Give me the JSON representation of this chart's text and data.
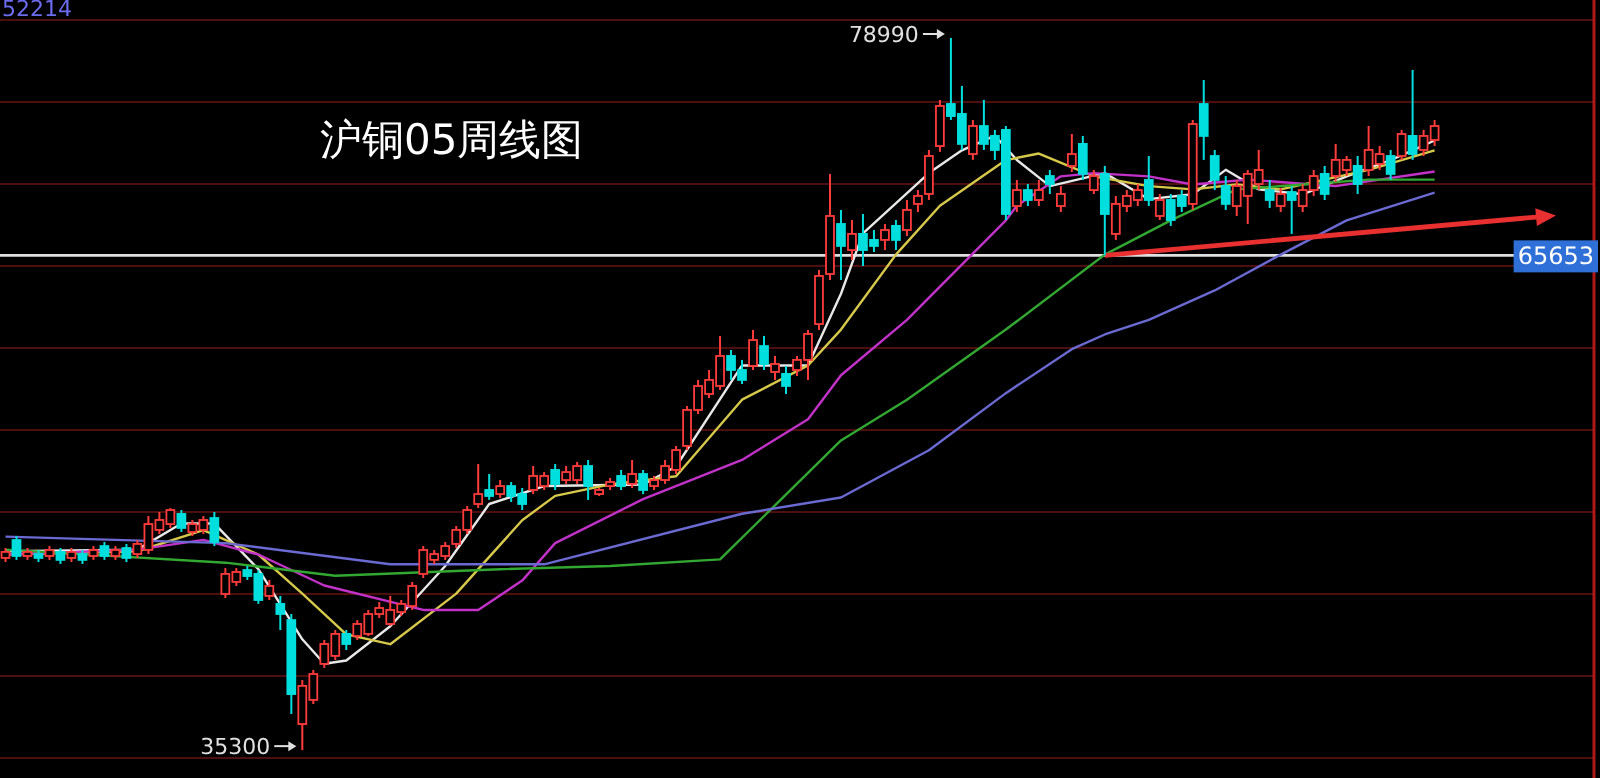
{
  "chart_data": {
    "type": "candlestick",
    "title": "沪铜05周线图",
    "annotations": [
      "52214",
      "78990",
      "35300"
    ],
    "categories": [
      null,
      null,
      null,
      null,
      null,
      null,
      null,
      null,
      null,
      null,
      null,
      null,
      null,
      null,
      null,
      null,
      null,
      null,
      null,
      null,
      null,
      null,
      null,
      null,
      null,
      null,
      null,
      null,
      null,
      null,
      null,
      null,
      null,
      null,
      null,
      null,
      null,
      null,
      null,
      null,
      null,
      null,
      null,
      null,
      null,
      null,
      null,
      null,
      null,
      null,
      null,
      null,
      null,
      null,
      null,
      null,
      null,
      null,
      null,
      null,
      null,
      null,
      null,
      null,
      null,
      null,
      null,
      null,
      null,
      null,
      null,
      null,
      null,
      null,
      null,
      null,
      null,
      null,
      null,
      null,
      null,
      null,
      null,
      null,
      null,
      null,
      null,
      null,
      null,
      null,
      null,
      null,
      null,
      null,
      null,
      null,
      null,
      null,
      null,
      null,
      null,
      null,
      null,
      null,
      null,
      null,
      null,
      null,
      null,
      null,
      null,
      null,
      null,
      null,
      null,
      null,
      null,
      null,
      null,
      null,
      null,
      null,
      null,
      null,
      null,
      null,
      null,
      null,
      null,
      null,
      null,
      null,
      null,
      null,
      null,
      null,
      null,
      null,
      null,
      null,
      null,
      null,
      null,
      null,
      null
    ],
    "ohlc": [
      [
        47090,
        47700,
        46840,
        47460
      ],
      [
        48190,
        48440,
        46970,
        47210
      ],
      [
        47210,
        47700,
        46970,
        47460
      ],
      [
        47330,
        47580,
        46840,
        47090
      ],
      [
        47210,
        47820,
        46970,
        47580
      ],
      [
        47460,
        47700,
        46720,
        46970
      ],
      [
        47090,
        47700,
        46840,
        47460
      ],
      [
        47330,
        47580,
        46720,
        46970
      ],
      [
        47210,
        47820,
        46970,
        47580
      ],
      [
        47820,
        48070,
        46970,
        47210
      ],
      [
        47210,
        47820,
        46970,
        47580
      ],
      [
        47700,
        47950,
        46840,
        47090
      ],
      [
        47330,
        48190,
        47090,
        47950
      ],
      [
        47580,
        49660,
        47330,
        49170
      ],
      [
        48810,
        49910,
        48560,
        49420
      ],
      [
        49170,
        50150,
        48930,
        50030
      ],
      [
        49790,
        50030,
        48680,
        48930
      ],
      [
        48680,
        49420,
        48440,
        49170
      ],
      [
        48810,
        49660,
        48560,
        49420
      ],
      [
        49540,
        49910,
        47820,
        48070
      ],
      [
        44880,
        46470,
        44630,
        46110
      ],
      [
        45620,
        46470,
        45370,
        46230
      ],
      [
        46350,
        46600,
        45740,
        45980
      ],
      [
        46110,
        46350,
        44270,
        44510
      ],
      [
        44760,
        45740,
        44510,
        45370
      ],
      [
        44270,
        44760,
        42670,
        43650
      ],
      [
        43280,
        43650,
        37520,
        38740
      ],
      [
        36900,
        39600,
        35300,
        39240
      ],
      [
        38380,
        40220,
        38130,
        39970
      ],
      [
        40590,
        42060,
        40340,
        41810
      ],
      [
        41080,
        42670,
        40830,
        42430
      ],
      [
        42430,
        42670,
        41440,
        41810
      ],
      [
        42300,
        43280,
        42060,
        43040
      ],
      [
        42430,
        43900,
        42300,
        43650
      ],
      [
        43650,
        44390,
        43410,
        44020
      ],
      [
        43040,
        44760,
        42920,
        43900
      ],
      [
        43770,
        44510,
        43530,
        44270
      ],
      [
        44140,
        45620,
        43900,
        45370
      ],
      [
        46110,
        47820,
        45860,
        47580
      ],
      [
        46970,
        47580,
        46720,
        47330
      ],
      [
        47210,
        48070,
        46970,
        47820
      ],
      [
        47950,
        49050,
        47700,
        48810
      ],
      [
        48810,
        50280,
        48560,
        50030
      ],
      [
        50400,
        52850,
        50150,
        51010
      ],
      [
        51260,
        52240,
        50650,
        50890
      ],
      [
        51010,
        51870,
        50770,
        51500
      ],
      [
        51500,
        51750,
        50520,
        50890
      ],
      [
        51010,
        51380,
        50030,
        50400
      ],
      [
        51260,
        52730,
        51010,
        52120
      ],
      [
        51500,
        52360,
        51260,
        52120
      ],
      [
        52490,
        52850,
        51260,
        51630
      ],
      [
        51870,
        52730,
        51630,
        52360
      ],
      [
        51870,
        52980,
        51630,
        52730
      ],
      [
        52730,
        53100,
        50650,
        51500
      ],
      [
        51010,
        51380,
        50890,
        51260
      ],
      [
        51500,
        52000,
        51260,
        51750
      ],
      [
        52120,
        52490,
        51260,
        51500
      ],
      [
        51630,
        53100,
        51380,
        52240
      ],
      [
        52240,
        52490,
        51010,
        51260
      ],
      [
        51500,
        52120,
        51260,
        51870
      ],
      [
        51870,
        53100,
        51630,
        52730
      ],
      [
        52490,
        53960,
        52240,
        53710
      ],
      [
        53960,
        56410,
        53710,
        56170
      ],
      [
        56170,
        58010,
        55920,
        57640
      ],
      [
        57150,
        58620,
        56900,
        58010
      ],
      [
        57640,
        60710,
        57400,
        59480
      ],
      [
        59480,
        59850,
        58010,
        58620
      ],
      [
        58620,
        59240,
        57760,
        58010
      ],
      [
        58870,
        61080,
        58620,
        60460
      ],
      [
        60090,
        60710,
        58620,
        58990
      ],
      [
        58500,
        59480,
        58010,
        58990
      ],
      [
        58380,
        58870,
        57150,
        57640
      ],
      [
        58620,
        59480,
        58250,
        59240
      ],
      [
        59240,
        61080,
        58010,
        60830
      ],
      [
        61440,
        64760,
        61080,
        64390
      ],
      [
        64510,
        70650,
        64140,
        68070
      ],
      [
        67580,
        68440,
        64140,
        66230
      ],
      [
        65980,
        67820,
        65370,
        66970
      ],
      [
        66970,
        68190,
        65000,
        65980
      ],
      [
        66600,
        67210,
        65860,
        66230
      ],
      [
        66600,
        67580,
        65980,
        67210
      ],
      [
        67460,
        67820,
        65980,
        66600
      ],
      [
        67210,
        69050,
        66840,
        68440
      ],
      [
        68810,
        69660,
        68310,
        69300
      ],
      [
        69420,
        72120,
        69050,
        71750
      ],
      [
        72360,
        75190,
        72000,
        74820
      ],
      [
        74940,
        78990,
        73960,
        74200
      ],
      [
        74330,
        76050,
        72120,
        72490
      ],
      [
        71870,
        73960,
        71510,
        73590
      ],
      [
        73590,
        75190,
        72120,
        72490
      ],
      [
        72980,
        73350,
        71510,
        72120
      ],
      [
        73350,
        73590,
        67820,
        68190
      ],
      [
        68680,
        70280,
        68310,
        69660
      ],
      [
        69660,
        70030,
        68680,
        69050
      ],
      [
        69050,
        70280,
        68680,
        69660
      ],
      [
        70520,
        70890,
        69420,
        70030
      ],
      [
        68680,
        69910,
        68310,
        69420
      ],
      [
        71140,
        73100,
        70770,
        71870
      ],
      [
        72490,
        72980,
        70280,
        70650
      ],
      [
        69660,
        70890,
        69420,
        70520
      ],
      [
        70650,
        71140,
        65653,
        68190
      ],
      [
        66970,
        69300,
        66600,
        68810
      ],
      [
        68680,
        69660,
        68310,
        69300
      ],
      [
        69050,
        70030,
        68680,
        69660
      ],
      [
        70280,
        71750,
        68680,
        69050
      ],
      [
        68070,
        69420,
        67820,
        69050
      ],
      [
        69050,
        69420,
        67460,
        67820
      ],
      [
        69300,
        69660,
        68310,
        68680
      ],
      [
        68810,
        73960,
        68440,
        73710
      ],
      [
        74940,
        76410,
        71510,
        72980
      ],
      [
        71750,
        72120,
        69660,
        70280
      ],
      [
        69910,
        70520,
        68440,
        68810
      ],
      [
        68680,
        70280,
        68070,
        69910
      ],
      [
        69300,
        70890,
        67580,
        70650
      ],
      [
        70030,
        72120,
        69660,
        70890
      ],
      [
        69660,
        70280,
        68560,
        69050
      ],
      [
        68680,
        69790,
        68310,
        69420
      ],
      [
        69540,
        69910,
        66970,
        69050
      ],
      [
        68680,
        70030,
        68310,
        69660
      ],
      [
        69660,
        70890,
        69300,
        70520
      ],
      [
        70650,
        71140,
        69050,
        69420
      ],
      [
        70520,
        72490,
        70160,
        71510
      ],
      [
        70890,
        71750,
        70520,
        71510
      ],
      [
        71140,
        71750,
        69420,
        70030
      ],
      [
        70890,
        73590,
        70520,
        72120
      ],
      [
        71260,
        72360,
        70890,
        71870
      ],
      [
        71750,
        72120,
        70280,
        70650
      ],
      [
        71750,
        73350,
        71510,
        73100
      ],
      [
        72980,
        77030,
        71510,
        71870
      ],
      [
        72120,
        73350,
        71750,
        72980
      ],
      [
        72730,
        73960,
        72360,
        73590
      ],
      null,
      null,
      null,
      null,
      null,
      null,
      null,
      null,
      null,
      null,
      null,
      null,
      null,
      null
    ],
    "colors": [
      "#ff3c3c",
      "#00dede",
      "#ff3c3c",
      "#00dede",
      "#ff3c3c",
      "#00dede",
      "#ff3c3c",
      "#00dede",
      "#ff3c3c",
      "#00dede",
      "#ff3c3c",
      "#00dede",
      "#ff3c3c",
      "#ff3c3c",
      "#ff3c3c",
      "#ff3c3c",
      "#00dede",
      "#ff3c3c",
      "#ff3c3c",
      "#00dede",
      "#ff3c3c",
      "#ff3c3c",
      "#00dede",
      "#00dede",
      "#ff3c3c",
      "#00dede",
      "#00dede",
      "#ff3c3c",
      "#ff3c3c",
      "#ff3c3c",
      "#ff3c3c",
      "#00dede",
      "#ff3c3c",
      "#ff3c3c",
      "#ff3c3c",
      "#ff3c3c",
      "#ff3c3c",
      "#ff3c3c",
      "#ff3c3c",
      "#ff3c3c",
      "#ff3c3c",
      "#ff3c3c",
      "#ff3c3c",
      "#ff3c3c",
      "#00dede",
      "#ff3c3c",
      "#00dede",
      "#00dede",
      "#ff3c3c",
      "#ff3c3c",
      "#00dede",
      "#ff3c3c",
      "#ff3c3c",
      "#00dede",
      "#ff3c3c",
      "#ff3c3c",
      "#00dede",
      "#ff3c3c",
      "#00dede",
      "#ff3c3c",
      "#ff3c3c",
      "#ff3c3c",
      "#ff3c3c",
      "#ff3c3c",
      "#ff3c3c",
      "#ff3c3c",
      "#00dede",
      "#00dede",
      "#ff3c3c",
      "#00dede",
      "#ff3c3c",
      "#00dede",
      "#ff3c3c",
      "#ff3c3c",
      "#ff3c3c",
      "#ff3c3c",
      "#00dede",
      "#ff3c3c",
      "#00dede",
      "#00dede",
      "#ff3c3c",
      "#00dede",
      "#ff3c3c",
      "#ff3c3c",
      "#ff3c3c",
      "#ff3c3c",
      "#00dede",
      "#00dede",
      "#ff3c3c",
      "#00dede",
      "#00dede",
      "#00dede",
      "#ff3c3c",
      "#00dede",
      "#ff3c3c",
      "#00dede",
      "#ff3c3c",
      "#ff3c3c",
      "#00dede",
      "#ff3c3c",
      "#00dede",
      "#ff3c3c",
      "#ff3c3c",
      "#ff3c3c",
      "#00dede",
      "#ff3c3c",
      "#00dede",
      "#00dede",
      "#ff3c3c",
      "#00dede",
      "#00dede",
      "#00dede",
      "#ff3c3c",
      "#ff3c3c",
      "#ff3c3c",
      "#00dede",
      "#ff3c3c",
      "#00dede",
      "#ff3c3c",
      "#ff3c3c",
      "#00dede",
      "#ff3c3c",
      "#ff3c3c",
      "#00dede",
      "#ff3c3c",
      "#ff3c3c",
      "#00dede",
      "#ff3c3c",
      "#00dede",
      "#ff3c3c",
      "#ff3c3c",
      null,
      null,
      null,
      null,
      null,
      null,
      null,
      null,
      null,
      null,
      null,
      null,
      null,
      null
    ],
    "series": [
      {
        "type": "line",
        "color": "#e8e8e8",
        "values": [
          47500,
          null,
          null,
          null,
          null,
          null,
          null,
          null,
          null,
          null,
          null,
          null,
          47600,
          null,
          null,
          null,
          49200,
          null,
          null,
          49200,
          null,
          null,
          null,
          46400,
          null,
          null,
          null,
          42100,
          null,
          40600,
          null,
          40800,
          null,
          null,
          null,
          42900,
          null,
          null,
          null,
          null,
          46600,
          null,
          null,
          null,
          50400,
          null,
          null,
          null,
          null,
          51500,
          null,
          null,
          null,
          null,
          null,
          null,
          null,
          null,
          51600,
          null,
          null,
          52700,
          null,
          null,
          null,
          null,
          null,
          58900,
          null,
          null,
          null,
          null,
          null,
          58900,
          null,
          null,
          63300,
          null,
          67000,
          null,
          null,
          null,
          null,
          null,
          70700,
          null,
          null,
          72100,
          null,
          null,
          73000,
          null,
          71500,
          null,
          null,
          69900,
          null,
          null,
          null,
          null,
          70700,
          null,
          null,
          null,
          69100,
          null,
          null,
          null,
          69400,
          null,
          null,
          70900,
          null,
          null,
          69700,
          null,
          null,
          null,
          69400,
          null,
          null,
          null,
          70500,
          null,
          null,
          null,
          71500,
          null,
          null,
          null,
          72700,
          null,
          null,
          null,
          null,
          null,
          null,
          null,
          null,
          null,
          null,
          null,
          null,
          null,
          null
        ]
      },
      {
        "type": "line",
        "color": "#d6c84a",
        "values": [
          47300,
          null,
          null,
          null,
          null,
          null,
          null,
          null,
          null,
          null,
          null,
          null,
          47500,
          null,
          null,
          null,
          null,
          null,
          48800,
          null,
          null,
          null,
          null,
          47300,
          null,
          null,
          null,
          44900,
          null,
          null,
          null,
          42400,
          null,
          null,
          null,
          41800,
          null,
          null,
          null,
          null,
          null,
          44900,
          null,
          null,
          null,
          null,
          null,
          49400,
          null,
          null,
          50900,
          null,
          null,
          null,
          null,
          51600,
          null,
          null,
          null,
          null,
          null,
          52100,
          null,
          null,
          null,
          null,
          null,
          56800,
          null,
          null,
          null,
          null,
          null,
          58900,
          null,
          null,
          61100,
          null,
          null,
          null,
          null,
          65700,
          null,
          null,
          null,
          68700,
          null,
          null,
          null,
          null,
          null,
          71500,
          null,
          null,
          71900,
          null,
          null,
          null,
          null,
          70500,
          null,
          null,
          null,
          null,
          69900,
          null,
          null,
          null,
          69700,
          null,
          null,
          null,
          70000,
          null,
          null,
          null,
          69700,
          null,
          null,
          null,
          70300,
          null,
          null,
          null,
          70900,
          null,
          null,
          71500,
          null,
          null,
          72100,
          null,
          null,
          null,
          null,
          null,
          null,
          null,
          null,
          null,
          null,
          null,
          null,
          null,
          null
        ]
      },
      {
        "type": "line",
        "color": "#c232c8",
        "values": [
          47300,
          null,
          null,
          null,
          null,
          null,
          null,
          null,
          null,
          null,
          null,
          null,
          47600,
          null,
          null,
          null,
          null,
          null,
          48200,
          null,
          null,
          null,
          null,
          47300,
          null,
          null,
          null,
          null,
          null,
          45400,
          null,
          null,
          null,
          null,
          null,
          null,
          null,
          null,
          43900,
          null,
          null,
          null,
          null,
          43900,
          null,
          null,
          null,
          45700,
          null,
          null,
          48000,
          null,
          null,
          null,
          null,
          null,
          null,
          null,
          50700,
          null,
          null,
          null,
          null,
          null,
          null,
          null,
          null,
          53100,
          null,
          null,
          null,
          null,
          null,
          55600,
          null,
          null,
          58300,
          null,
          null,
          null,
          null,
          null,
          61700,
          null,
          null,
          null,
          null,
          null,
          null,
          null,
          null,
          67800,
          68700,
          null,
          null,
          null,
          70500,
          null,
          null,
          70700,
          null,
          null,
          null,
          null,
          70500,
          null,
          null,
          null,
          70000,
          null,
          null,
          null,
          null,
          70300,
          null,
          null,
          null,
          null,
          null,
          null,
          null,
          69900,
          null,
          null,
          null,
          null,
          null,
          null,
          null,
          null,
          70800,
          null,
          null,
          null,
          null,
          null,
          null,
          null,
          null,
          null,
          null,
          null,
          null,
          null,
          null
        ]
      },
      {
        "type": "line",
        "color": "#32a832",
        "values": [
          47600,
          null,
          null,
          null,
          null,
          null,
          null,
          null,
          null,
          null,
          null,
          null,
          null,
          null,
          null,
          null,
          null,
          null,
          null,
          null,
          46800,
          null,
          null,
          null,
          null,
          null,
          null,
          null,
          null,
          null,
          46000,
          null,
          null,
          null,
          null,
          null,
          null,
          null,
          null,
          null,
          null,
          null,
          null,
          null,
          null,
          46400,
          null,
          null,
          null,
          null,
          null,
          null,
          null,
          null,
          null,
          46600,
          null,
          null,
          null,
          null,
          null,
          null,
          null,
          null,
          null,
          47000,
          null,
          null,
          null,
          null,
          null,
          null,
          null,
          null,
          null,
          null,
          54300,
          null,
          null,
          null,
          null,
          null,
          56800,
          null,
          null,
          null,
          null,
          null,
          null,
          null,
          null,
          61100,
          null,
          null,
          null,
          null,
          null,
          null,
          null,
          null,
          65700,
          null,
          null,
          null,
          null,
          null,
          67800,
          null,
          null,
          null,
          null,
          null,
          69700,
          null,
          null,
          null,
          null,
          null,
          70000,
          null,
          null,
          null,
          null,
          null,
          70300,
          null,
          null,
          null,
          null,
          null,
          70300,
          null,
          null,
          null,
          null,
          null,
          null,
          null,
          null,
          null,
          null,
          null,
          null,
          null,
          null
        ]
      },
      {
        "type": "line",
        "color": "#6a6ad2",
        "values": [
          48400,
          null,
          null,
          null,
          null,
          null,
          null,
          null,
          null,
          null,
          48200,
          null,
          null,
          null,
          null,
          null,
          null,
          null,
          null,
          null,
          48000,
          null,
          null,
          null,
          null,
          null,
          null,
          null,
          null,
          null,
          null,
          null,
          null,
          null,
          null,
          46700,
          null,
          null,
          null,
          null,
          null,
          null,
          null,
          null,
          null,
          null,
          null,
          null,
          null,
          46700,
          null,
          null,
          null,
          null,
          null,
          null,
          null,
          null,
          null,
          null,
          null,
          null,
          null,
          null,
          null,
          null,
          null,
          49800,
          null,
          null,
          null,
          null,
          null,
          null,
          null,
          null,
          50800,
          null,
          null,
          null,
          null,
          null,
          null,
          null,
          53700,
          null,
          null,
          null,
          null,
          null,
          null,
          57200,
          null,
          null,
          null,
          null,
          null,
          59900,
          null,
          null,
          60800,
          null,
          null,
          null,
          61700,
          null,
          null,
          null,
          null,
          null,
          63500,
          null,
          null,
          null,
          null,
          null,
          65700,
          null,
          null,
          null,
          null,
          null,
          67800,
          null,
          null,
          null,
          null,
          null,
          null,
          null,
          69500,
          null,
          null,
          null,
          null,
          null,
          null,
          null,
          null,
          null,
          null,
          null,
          null,
          null,
          null
        ]
      }
    ],
    "ylim": [
      33590,
      81320
    ],
    "yticks": [
      {
        "value": 80090,
        "label": null
      },
      {
        "value": 75060,
        "label": null
      },
      {
        "value": 70030,
        "label": null
      },
      {
        "value": 65000,
        "label": null
      },
      {
        "value": 59970,
        "label": null
      },
      {
        "value": 54940,
        "label": null
      },
      {
        "value": 49910,
        "label": null
      },
      {
        "value": 44880,
        "label": null
      },
      {
        "value": 39850,
        "label": null
      },
      {
        "value": 34820,
        "label": null
      }
    ],
    "grid": "y",
    "ref_lines": [
      {
        "axis": "y",
        "value": 65653,
        "label": "65653",
        "color": "#e0e0e0"
      }
    ]
  }
}
